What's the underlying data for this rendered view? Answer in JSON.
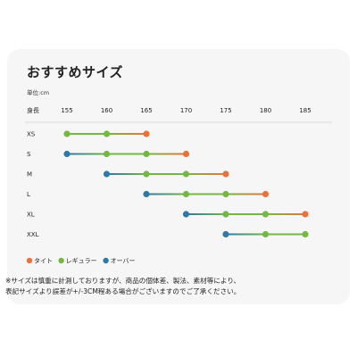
{
  "chart_data": {
    "type": "line",
    "title": "おすすめサイズ",
    "unit_label": "単位:cm",
    "xlabel": "身長",
    "x_ticks": [
      155,
      160,
      165,
      170,
      175,
      180,
      185
    ],
    "xlim": [
      155,
      185
    ],
    "categories": [
      "XS",
      "S",
      "M",
      "L",
      "XL",
      "XXL"
    ],
    "legend": [
      {
        "key": "tight",
        "label": "タイト",
        "color": "#e8733a"
      },
      {
        "key": "regular",
        "label": "レギュラー",
        "color": "#72b842"
      },
      {
        "key": "over",
        "label": "オーバー",
        "color": "#2f79a8"
      }
    ],
    "rows": [
      {
        "size": "XS",
        "points": [
          {
            "x": 155,
            "fit": "regular"
          },
          {
            "x": 160,
            "fit": "regular"
          },
          {
            "x": 165,
            "fit": "tight"
          }
        ]
      },
      {
        "size": "S",
        "points": [
          {
            "x": 155,
            "fit": "over"
          },
          {
            "x": 160,
            "fit": "regular"
          },
          {
            "x": 165,
            "fit": "regular"
          },
          {
            "x": 170,
            "fit": "tight"
          }
        ]
      },
      {
        "size": "M",
        "points": [
          {
            "x": 160,
            "fit": "over"
          },
          {
            "x": 165,
            "fit": "regular"
          },
          {
            "x": 170,
            "fit": "regular"
          },
          {
            "x": 175,
            "fit": "tight"
          }
        ]
      },
      {
        "size": "L",
        "points": [
          {
            "x": 165,
            "fit": "over"
          },
          {
            "x": 170,
            "fit": "regular"
          },
          {
            "x": 175,
            "fit": "regular"
          },
          {
            "x": 180,
            "fit": "tight"
          }
        ]
      },
      {
        "size": "XL",
        "points": [
          {
            "x": 170,
            "fit": "over"
          },
          {
            "x": 175,
            "fit": "regular"
          },
          {
            "x": 180,
            "fit": "regular"
          },
          {
            "x": 185,
            "fit": "tight"
          }
        ]
      },
      {
        "size": "XXL",
        "points": [
          {
            "x": 175,
            "fit": "over"
          },
          {
            "x": 180,
            "fit": "regular"
          },
          {
            "x": 185,
            "fit": "regular"
          }
        ]
      }
    ],
    "grid": false,
    "legend_position": "bottom-left"
  },
  "notes": [
    "※サイズは慎重に計測しておりますが、商品の個体差、製法、素材等により、",
    "表記サイズより誤差が+/-3CM程ある場合がございますのでご了承ください。"
  ]
}
